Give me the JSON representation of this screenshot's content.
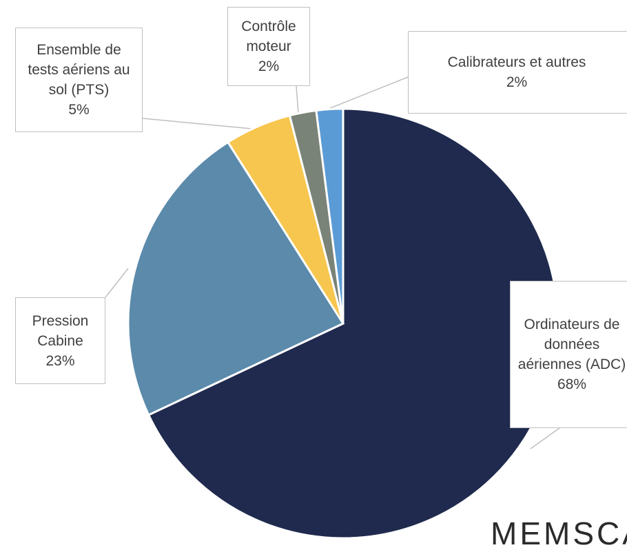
{
  "chart_data": {
    "type": "pie",
    "categories": [
      "Ordinateurs de données aériennes (ADC)",
      "Pression Cabine",
      "Ensemble de tests aériens au sol (PTS)",
      "Contrôle moteur",
      "Calibrateurs et autres"
    ],
    "values": [
      68,
      23,
      5,
      2,
      2
    ],
    "value_labels": [
      "68%",
      "23%",
      "5%",
      "2%",
      "2%"
    ],
    "colors": [
      "#1f2a4e",
      "#5b8aab",
      "#f7c64e",
      "#7a8377",
      "#5b9bd5"
    ]
  },
  "logo": "MEMSCA"
}
